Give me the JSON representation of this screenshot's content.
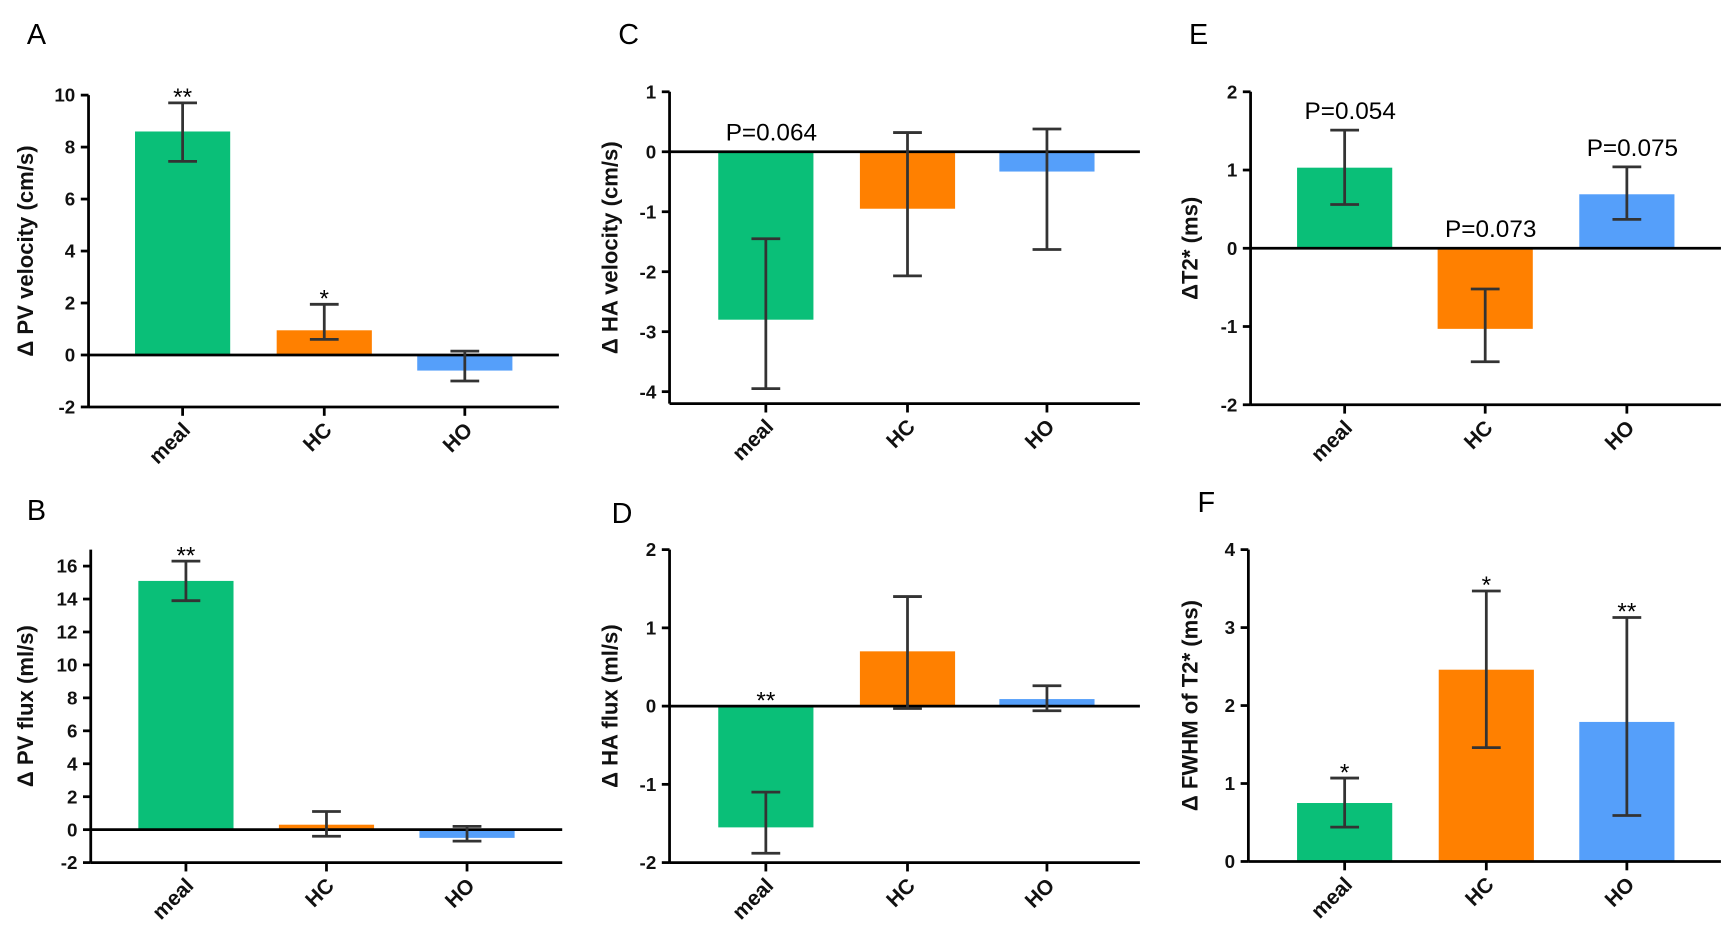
{
  "colors": {
    "meal": "#0abf78",
    "HC": "#ff8000",
    "HO": "#559ffa",
    "error": "#333333"
  },
  "chart_data": [
    {
      "type": "bar",
      "panel": "A",
      "ylabel": "Δ PV velocity (cm/s)",
      "categories": [
        "meal",
        "HC",
        "HO"
      ],
      "values": [
        8.6,
        0.95,
        -0.6
      ],
      "err_low": [
        7.45,
        0.6,
        -1.0
      ],
      "err_high": [
        9.7,
        1.95,
        0.15
      ],
      "ylim": [
        -2,
        10
      ],
      "yticks": [
        -2,
        0,
        2,
        4,
        6,
        8,
        10
      ],
      "annotations": [
        "**",
        "*",
        ""
      ]
    },
    {
      "type": "bar",
      "panel": "B",
      "ylabel": "Δ PV flux (ml/s)",
      "categories": [
        "meal",
        "HC",
        "HO"
      ],
      "values": [
        15.1,
        0.3,
        -0.5
      ],
      "err_low": [
        13.9,
        -0.4,
        -0.7
      ],
      "err_high": [
        16.3,
        1.1,
        0.2
      ],
      "ylim": [
        -2,
        17
      ],
      "yticks": [
        -2,
        0,
        2,
        4,
        6,
        8,
        10,
        12,
        14,
        16
      ],
      "annotations": [
        "**",
        "",
        ""
      ]
    },
    {
      "type": "bar",
      "panel": "C",
      "ylabel": "Δ HA velocity (cm/s)",
      "categories": [
        "meal",
        "HC",
        "HO"
      ],
      "values": [
        -2.8,
        -0.95,
        -0.33
      ],
      "err_low": [
        -3.95,
        -2.07,
        -1.63
      ],
      "err_high": [
        -1.45,
        0.32,
        0.38
      ],
      "ylim": [
        -4.2,
        1
      ],
      "yticks": [
        -4,
        -3,
        -2,
        -1,
        0,
        1
      ],
      "annotations": [
        "P=0.064",
        "",
        ""
      ]
    },
    {
      "type": "bar",
      "panel": "D",
      "ylabel": "Δ HA flux (ml/s)",
      "categories": [
        "meal",
        "HC",
        "HO"
      ],
      "values": [
        -1.55,
        0.7,
        0.09
      ],
      "err_low": [
        -1.88,
        -0.03,
        -0.06
      ],
      "err_high": [
        -1.1,
        1.4,
        0.26
      ],
      "ylim": [
        -2,
        2
      ],
      "yticks": [
        -2,
        -1,
        0,
        1,
        2
      ],
      "annotations": [
        "**",
        "",
        ""
      ]
    },
    {
      "type": "bar",
      "panel": "E",
      "ylabel": "ΔT2* (ms)",
      "categories": [
        "meal",
        "HC",
        "HO"
      ],
      "values": [
        1.03,
        -1.03,
        0.69
      ],
      "err_low": [
        0.56,
        -1.45,
        0.37
      ],
      "err_high": [
        1.51,
        -0.52,
        1.04
      ],
      "ylim": [
        -2,
        2
      ],
      "yticks": [
        -2,
        -1,
        0,
        1,
        2
      ],
      "annotations": [
        "P=0.054",
        "P=0.073",
        "P=0.075"
      ]
    },
    {
      "type": "bar",
      "panel": "F",
      "ylabel": "Δ FWHM of T2* (ms)",
      "categories": [
        "meal",
        "HC",
        "HO"
      ],
      "values": [
        0.75,
        2.46,
        1.79
      ],
      "err_low": [
        0.44,
        1.46,
        0.59
      ],
      "err_high": [
        1.07,
        3.47,
        3.13
      ],
      "ylim": [
        0,
        4
      ],
      "yticks": [
        0,
        1,
        2,
        3,
        4
      ],
      "annotations": [
        "*",
        "*",
        "**"
      ]
    }
  ]
}
